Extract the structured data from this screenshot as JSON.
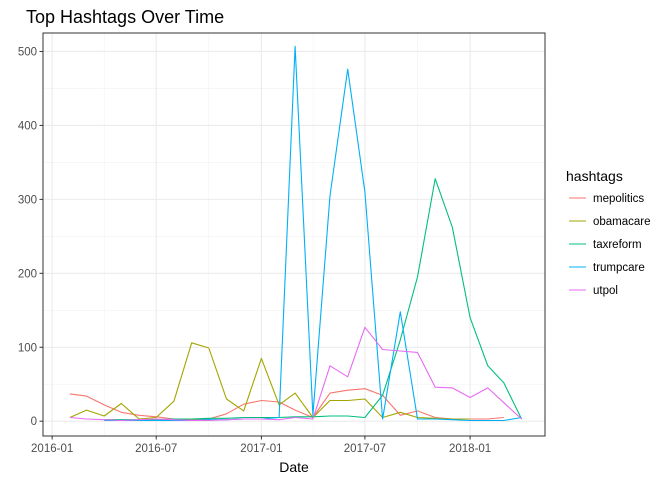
{
  "chart_data": {
    "type": "line",
    "title": "Top Hashtags Over Time",
    "xlabel": "Date",
    "ylabel": "",
    "x_ticks": [
      "2016-01",
      "2016-07",
      "2017-01",
      "2017-07",
      "2018-01"
    ],
    "y_ticks": [
      "0",
      "100",
      "200",
      "300",
      "400",
      "500"
    ],
    "ylim": [
      -20,
      525
    ],
    "xlim": [
      "2015-12-16",
      "2018-05-12"
    ],
    "grid": true,
    "legend": {
      "title": "hashtags",
      "position": "right"
    },
    "series": [
      {
        "name": "mepolitics",
        "color": "#F8766D",
        "x": [
          "2016-02-01",
          "2016-03-01",
          "2016-04-01",
          "2016-05-01",
          "2016-06-01",
          "2016-07-01",
          "2016-08-01",
          "2016-09-01",
          "2016-10-01",
          "2016-11-01",
          "2016-12-01",
          "2017-01-01",
          "2017-02-01",
          "2017-03-01",
          "2017-04-01",
          "2017-05-01",
          "2017-06-01",
          "2017-07-01",
          "2017-08-01",
          "2017-09-01",
          "2017-10-01",
          "2017-11-01",
          "2017-12-01",
          "2018-01-01",
          "2018-02-01",
          "2018-03-01"
        ],
        "y": [
          37,
          34,
          22,
          12,
          8,
          6,
          3,
          2,
          3,
          10,
          23,
          28,
          26,
          15,
          5,
          38,
          42,
          44,
          35,
          8,
          14,
          5,
          3,
          3,
          3,
          5
        ]
      },
      {
        "name": "obamacare",
        "color": "#A3A500",
        "x": [
          "2016-02-01",
          "2016-03-01",
          "2016-04-01",
          "2016-05-01",
          "2016-06-01",
          "2016-07-01",
          "2016-08-01",
          "2016-09-01",
          "2016-10-01",
          "2016-11-01",
          "2016-12-01",
          "2017-01-01",
          "2017-02-01",
          "2017-03-01",
          "2017-04-01",
          "2017-05-01",
          "2017-06-01",
          "2017-07-01",
          "2017-08-01",
          "2017-09-01",
          "2017-10-01",
          "2017-11-01",
          "2017-12-01",
          "2018-01-01"
        ],
        "y": [
          5,
          15,
          7,
          24,
          3,
          5,
          27,
          106,
          99,
          30,
          14,
          85,
          22,
          38,
          5,
          28,
          28,
          30,
          5,
          12,
          5,
          4,
          3,
          3
        ]
      },
      {
        "name": "taxreform",
        "color": "#00BF7D",
        "x": [
          "2016-04-01",
          "2016-05-01",
          "2016-06-01",
          "2016-07-01",
          "2016-08-01",
          "2016-09-01",
          "2016-10-01",
          "2016-11-01",
          "2016-12-01",
          "2017-01-01",
          "2017-02-01",
          "2017-03-01",
          "2017-04-01",
          "2017-05-01",
          "2017-06-01",
          "2017-07-01",
          "2017-08-01",
          "2017-09-01",
          "2017-10-01",
          "2017-11-01",
          "2017-12-01",
          "2018-01-01",
          "2018-02-01",
          "2018-03-01",
          "2018-04-01"
        ],
        "y": [
          2,
          2,
          2,
          2,
          3,
          3,
          4,
          4,
          5,
          5,
          5,
          6,
          6,
          7,
          7,
          5,
          35,
          110,
          195,
          328,
          262,
          140,
          75,
          52,
          3
        ]
      },
      {
        "name": "trumpcare",
        "color": "#00B0F6",
        "x": [
          "2016-04-01",
          "2016-05-01",
          "2016-06-01",
          "2016-07-01",
          "2016-08-01",
          "2016-09-01",
          "2016-10-01",
          "2016-11-01",
          "2016-12-01",
          "2017-01-01",
          "2017-02-01",
          "2017-03-01",
          "2017-04-01",
          "2017-05-01",
          "2017-06-01",
          "2017-07-01",
          "2017-08-01",
          "2017-09-01",
          "2017-10-01",
          "2017-11-01",
          "2017-12-01",
          "2018-01-01",
          "2018-02-01",
          "2018-03-01",
          "2018-04-01"
        ],
        "y": [
          1,
          1,
          1,
          1,
          1,
          1,
          2,
          2,
          3,
          3,
          5,
          507,
          8,
          305,
          476,
          310,
          3,
          148,
          3,
          3,
          2,
          1,
          1,
          1,
          5
        ]
      },
      {
        "name": "utpol",
        "color": "#E76BF3",
        "x": [
          "2016-02-01",
          "2016-03-01",
          "2016-04-01",
          "2016-05-01",
          "2016-06-01",
          "2016-07-01",
          "2016-08-01",
          "2016-09-01",
          "2016-10-01",
          "2016-11-01",
          "2016-12-01",
          "2017-01-01",
          "2017-02-01",
          "2017-03-01",
          "2017-04-01",
          "2017-05-01",
          "2017-06-01",
          "2017-07-01",
          "2017-08-01",
          "2017-09-01",
          "2017-10-01",
          "2017-11-01",
          "2017-12-01",
          "2018-01-01",
          "2018-02-01",
          "2018-03-01",
          "2018-04-01"
        ],
        "y": [
          5,
          3,
          2,
          1,
          2,
          3,
          2,
          1,
          1,
          2,
          3,
          3,
          2,
          5,
          3,
          75,
          60,
          127,
          97,
          95,
          93,
          46,
          45,
          32,
          45,
          25,
          3
        ]
      }
    ]
  }
}
